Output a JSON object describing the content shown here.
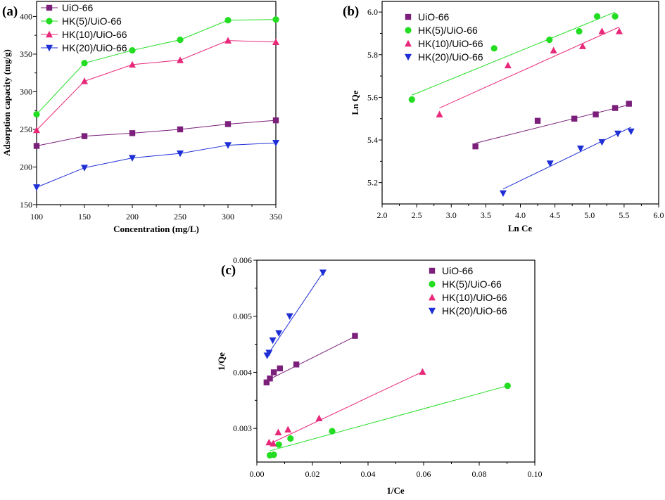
{
  "chart_data": [
    {
      "panel": "(a)",
      "type": "line",
      "xlabel": "Concentration (mg/L)",
      "ylabel": "Adsorption capacity (mg/g)",
      "xlim": [
        100,
        350
      ],
      "ylim": [
        150,
        420
      ],
      "xticks": [
        "100",
        "150",
        "200",
        "250",
        "300",
        "350"
      ],
      "yticks": [
        "150",
        "200",
        "250",
        "300",
        "350",
        "400"
      ],
      "legend_position": "top-left",
      "x": [
        100,
        150,
        200,
        250,
        300,
        350
      ],
      "series": [
        {
          "name": "UiO-66",
          "color": "#7b1f7b",
          "marker": "square",
          "values": [
            228,
            241,
            245,
            250,
            257,
            262
          ]
        },
        {
          "name": "HK(5)/UiO-66",
          "color": "#22dd22",
          "marker": "circle",
          "values": [
            270,
            338,
            355,
            369,
            395,
            396
          ]
        },
        {
          "name": "HK(10)/UiO-66",
          "color": "#e8297a",
          "marker": "triangle-up",
          "values": [
            249,
            314,
            336,
            342,
            368,
            366
          ]
        },
        {
          "name": "HK(20)/UiO-66",
          "color": "#1f2fd6",
          "marker": "triangle-down",
          "values": [
            173,
            199,
            212,
            218,
            229,
            232
          ]
        }
      ]
    },
    {
      "panel": "(b)",
      "type": "scatter",
      "xlabel": "Ln Ce",
      "ylabel": "Ln Qe",
      "xlim": [
        2.0,
        6.0
      ],
      "ylim": [
        5.1,
        6.05
      ],
      "xticks": [
        "2.0",
        "2.5",
        "3.0",
        "3.5",
        "4.0",
        "4.5",
        "5.0",
        "5.5",
        "6.0"
      ],
      "yticks": [
        "5.2",
        "5.4",
        "5.6",
        "5.8",
        "6.0"
      ],
      "legend_position": "top-left",
      "series": [
        {
          "name": "UiO-66",
          "color": "#7b1f7b",
          "marker": "square",
          "x": [
            3.35,
            4.25,
            4.78,
            5.09,
            5.37,
            5.57
          ],
          "y": [
            5.37,
            5.49,
            5.5,
            5.52,
            5.55,
            5.57
          ],
          "fit": [
            [
              3.35,
              5.385
            ],
            [
              5.57,
              5.565
            ]
          ]
        },
        {
          "name": "HK(5)/UiO-66",
          "color": "#22dd22",
          "marker": "circle",
          "x": [
            2.43,
            3.62,
            4.42,
            4.85,
            5.11,
            5.37
          ],
          "y": [
            5.59,
            5.83,
            5.87,
            5.91,
            5.98,
            5.98
          ],
          "fit": [
            [
              2.43,
              5.61
            ],
            [
              5.37,
              6.0
            ]
          ]
        },
        {
          "name": "HK(10)/UiO-66",
          "color": "#e8297a",
          "marker": "triangle-up",
          "x": [
            2.83,
            3.82,
            4.48,
            4.9,
            5.18,
            5.43
          ],
          "y": [
            5.52,
            5.75,
            5.82,
            5.84,
            5.91,
            5.91
          ],
          "fit": [
            [
              2.83,
              5.55
            ],
            [
              5.43,
              5.93
            ]
          ]
        },
        {
          "name": "HK(20)/UiO-66",
          "color": "#1f2fd6",
          "marker": "triangle-down",
          "x": [
            3.75,
            4.43,
            4.87,
            5.18,
            5.41,
            5.6
          ],
          "y": [
            5.15,
            5.29,
            5.36,
            5.39,
            5.43,
            5.44
          ],
          "fit": [
            [
              3.75,
              5.17
            ],
            [
              5.6,
              5.46
            ]
          ]
        }
      ]
    },
    {
      "panel": "(c)",
      "type": "scatter",
      "xlabel": "1/Ce",
      "ylabel": "1/Qe",
      "xlim": [
        0.0,
        0.1
      ],
      "ylim": [
        0.0024,
        0.006
      ],
      "xticks": [
        "0.00",
        "0.02",
        "0.04",
        "0.06",
        "0.08",
        "0.10"
      ],
      "yticks": [
        "0.003",
        "0.004",
        "0.005",
        "0.006"
      ],
      "legend_position": "top-right",
      "series": [
        {
          "name": "UiO-66",
          "color": "#7b1f7b",
          "marker": "square",
          "x": [
            0.0035,
            0.0047,
            0.0061,
            0.0083,
            0.0142,
            0.0353
          ],
          "y": [
            0.00382,
            0.00389,
            0.004,
            0.00407,
            0.00414,
            0.00465
          ],
          "fit": [
            [
              0.0035,
              0.00385
            ],
            [
              0.0353,
              0.00464
            ]
          ]
        },
        {
          "name": "HK(5)/UiO-66",
          "color": "#22dd22",
          "marker": "circle",
          "x": [
            0.0047,
            0.0061,
            0.0079,
            0.0121,
            0.0271,
            0.0902
          ],
          "y": [
            0.00252,
            0.00253,
            0.00271,
            0.00282,
            0.00295,
            0.00376
          ],
          "fit": [
            [
              0.0047,
              0.0026
            ],
            [
              0.0902,
              0.00376
            ]
          ]
        },
        {
          "name": "HK(10)/UiO-66",
          "color": "#e8297a",
          "marker": "triangle-up",
          "x": [
            0.0044,
            0.0059,
            0.0077,
            0.0112,
            0.0224,
            0.0596
          ],
          "y": [
            0.00275,
            0.00273,
            0.00293,
            0.00298,
            0.00318,
            0.00401
          ],
          "fit": [
            [
              0.0044,
              0.00272
            ],
            [
              0.0596,
              0.00401
            ]
          ]
        },
        {
          "name": "HK(20)/UiO-66",
          "color": "#1f2fd6",
          "marker": "triangle-down",
          "x": [
            0.0037,
            0.0044,
            0.0057,
            0.0079,
            0.0118,
            0.0238
          ],
          "y": [
            0.0043,
            0.00435,
            0.00457,
            0.0047,
            0.005,
            0.00578
          ],
          "fit": [
            [
              0.0037,
              0.0043
            ],
            [
              0.0238,
              0.00578
            ]
          ]
        }
      ]
    }
  ]
}
